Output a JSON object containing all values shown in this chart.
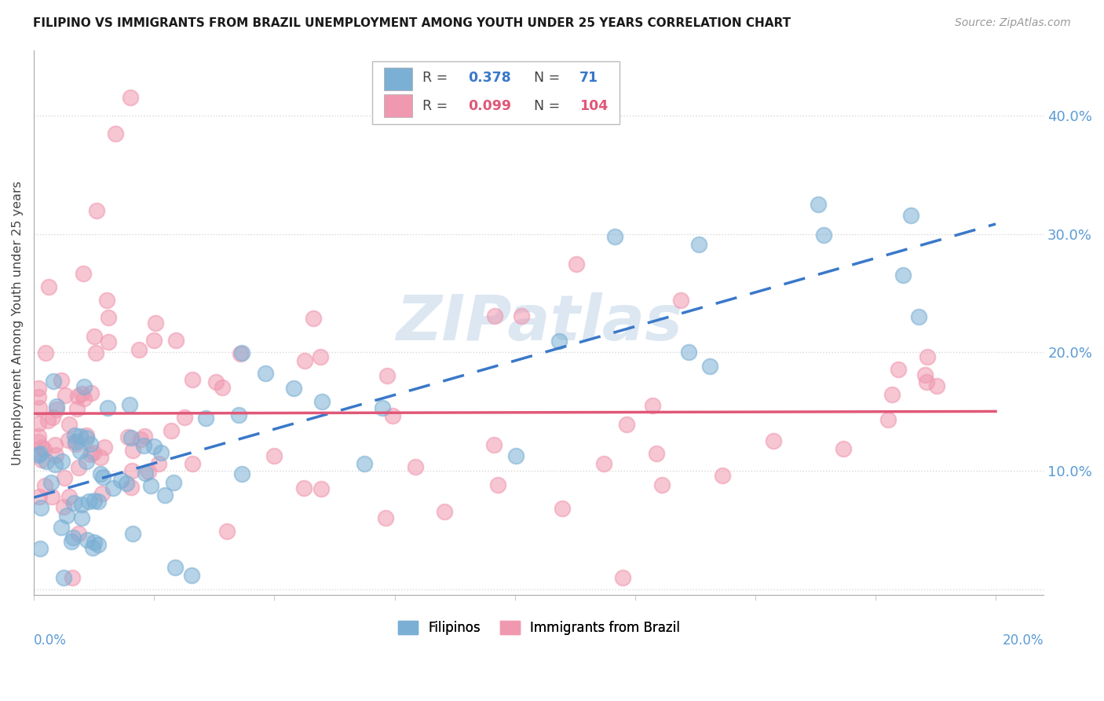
{
  "title": "FILIPINO VS IMMIGRANTS FROM BRAZIL UNEMPLOYMENT AMONG YOUTH UNDER 25 YEARS CORRELATION CHART",
  "source": "Source: ZipAtlas.com",
  "ylabel": "Unemployment Among Youth under 25 years",
  "blue_color": "#7bafd4",
  "pink_color": "#f098b0",
  "blue_line_color": "#3a78c9",
  "pink_line_color": "#e05878",
  "watermark_color": "#c5d8ea",
  "background_color": "#ffffff",
  "grid_color": "#d8d8d8",
  "right_tick_color": "#5b9bd5",
  "xlim": [
    0.0,
    0.21
  ],
  "ylim": [
    -0.005,
    0.455
  ],
  "yticks": [
    0.0,
    0.1,
    0.2,
    0.3,
    0.4
  ],
  "ytick_labels": [
    "",
    "10.0%",
    "20.0%",
    "30.0%",
    "40.0%"
  ],
  "blue_intercept": 0.085,
  "blue_slope": 1.05,
  "pink_intercept": 0.135,
  "pink_slope": 0.18
}
